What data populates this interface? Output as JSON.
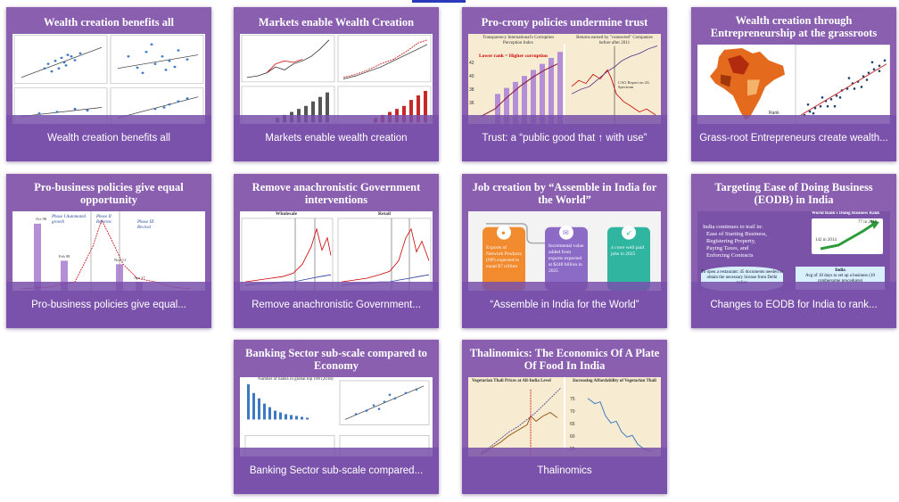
{
  "cards": [
    {
      "title": "Wealth creation benefits all",
      "caption": "Wealth creation benefits all",
      "icon": "scatter-plots-thumbnail"
    },
    {
      "title": "Markets enable Wealth Creation",
      "caption": "Markets enable wealth creation",
      "icon": "market-charts-thumbnail"
    },
    {
      "title": "Pro-crony policies undermine trust",
      "caption": "Trust: a “public good that ↑ with use”",
      "icon": "crony-charts-thumbnail"
    },
    {
      "title": "Wealth creation through Entrepreneurship at the grassroots",
      "caption": "Grass-root Entrepreneurs create wealth...",
      "icon": "india-map-thumbnail"
    },
    {
      "title": "Pro-business policies give equal opportunity",
      "caption": "Pro-business policies give equal...",
      "icon": "policy-chart-thumbnail"
    },
    {
      "title": "Remove anachronistic Government interventions",
      "caption": "Remove anachronistic Government...",
      "icon": "price-charts-thumbnail"
    },
    {
      "title": "Job creation by “Assemble in India for the World”",
      "caption": "“Assemble in India for the World”",
      "icon": "infographic-thumbnail"
    },
    {
      "title": "Targeting Ease of Doing Business (EODB) in India",
      "caption": "Changes to EODB for India to rank...",
      "icon": "eodb-thumbnail"
    },
    {
      "title": "Banking Sector sub-scale compared to Economy",
      "caption": "Banking Sector sub-scale compared...",
      "icon": "banking-charts-thumbnail"
    },
    {
      "title": "Thalinomics: The Economics Of A Plate Of Food In India",
      "caption": "Thalinomics",
      "icon": "thali-charts-thumbnail"
    }
  ],
  "thumb_text": {
    "t3_left": "Transparency International's Corruption Perception Index",
    "t3_right": "Returns earned by \"connected\" Companies before after 2011",
    "t3_note": "Lower rank = Higher corruption",
    "t3_ticks": [
      "42",
      "40",
      "38",
      "36"
    ],
    "t3_caglabel": "CAG Report on 2G Spectrum",
    "t4_label": "Rank",
    "t5_phase1": "Phase I Automated growth",
    "t5_phase2": "Phase II Reforms",
    "t5_phase3": "Phase III Revival",
    "t5_bars": [
      "Oct 98",
      "Feb 98",
      "Nov 11",
      "Apr 17"
    ],
    "t6_left": "Wholesale",
    "t6_right": "Retail",
    "t7_text": "Exports of Network Products (NP) expected to equal $7 trillion",
    "t7_text2": "Incremental value added from exports expected at $248 billion in 2025",
    "t7_text3": "4 crore well paid jobs in 2025",
    "t8_line1": "India continues to trail in:",
    "t8_items": [
      "Ease of Starting Business,",
      "Registering Property,",
      "Paying Taxes, and",
      "Enforcing Contracts"
    ],
    "t8_chart": "World Bank's Doing Business Rank",
    "t8_rank1": "142 in 2014",
    "t8_rank2": "77 in 2019",
    "t8_box1": "To open a restaurant: 45 documents needed to obtain the necessary license from Delhi police",
    "t8_box2_title": "India",
    "t8_box2": "Avg of 18 days to set up a business (10 cumbersome procedures)",
    "t9_label": "Number of banks in global top 100 (2018)",
    "t10_left": "Vegetarian Thali Prices at All-India Level",
    "t10_right": "Increasing Affordability of Vegetarian Thali",
    "t10_ticks": [
      "75",
      "70",
      "65",
      "60",
      "55"
    ]
  }
}
